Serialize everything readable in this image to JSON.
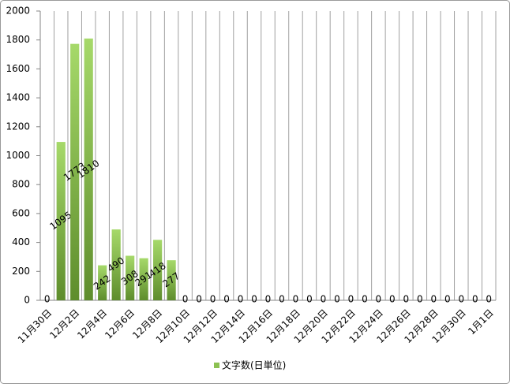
{
  "chart_data": {
    "type": "bar",
    "categories": [
      "11月30日",
      null,
      "12月2日",
      null,
      "12月4日",
      null,
      "12月6日",
      null,
      "12月8日",
      null,
      "12月10日",
      null,
      "12月12日",
      null,
      "12月14日",
      null,
      "12月16日",
      null,
      "12月18日",
      null,
      "12月20日",
      null,
      "12月22日",
      null,
      "12月24日",
      null,
      "12月26日",
      null,
      "12月28日",
      null,
      "12月30日",
      null,
      "1月1日"
    ],
    "series": [
      {
        "name": "文字数(日単位)",
        "color": "#8cc152",
        "values": [
          0,
          1095,
          1773,
          1810,
          242,
          490,
          308,
          291,
          418,
          277,
          0,
          0,
          0,
          0,
          0,
          0,
          0,
          0,
          0,
          0,
          0,
          0,
          0,
          0,
          0,
          0,
          0,
          0,
          0,
          0,
          0,
          0,
          0
        ]
      }
    ],
    "ylim": [
      0,
      2000
    ],
    "yticks": [
      0,
      200,
      400,
      600,
      800,
      1000,
      1200,
      1400,
      1600,
      1800,
      2000
    ],
    "grid": true,
    "legend": "bottom"
  }
}
